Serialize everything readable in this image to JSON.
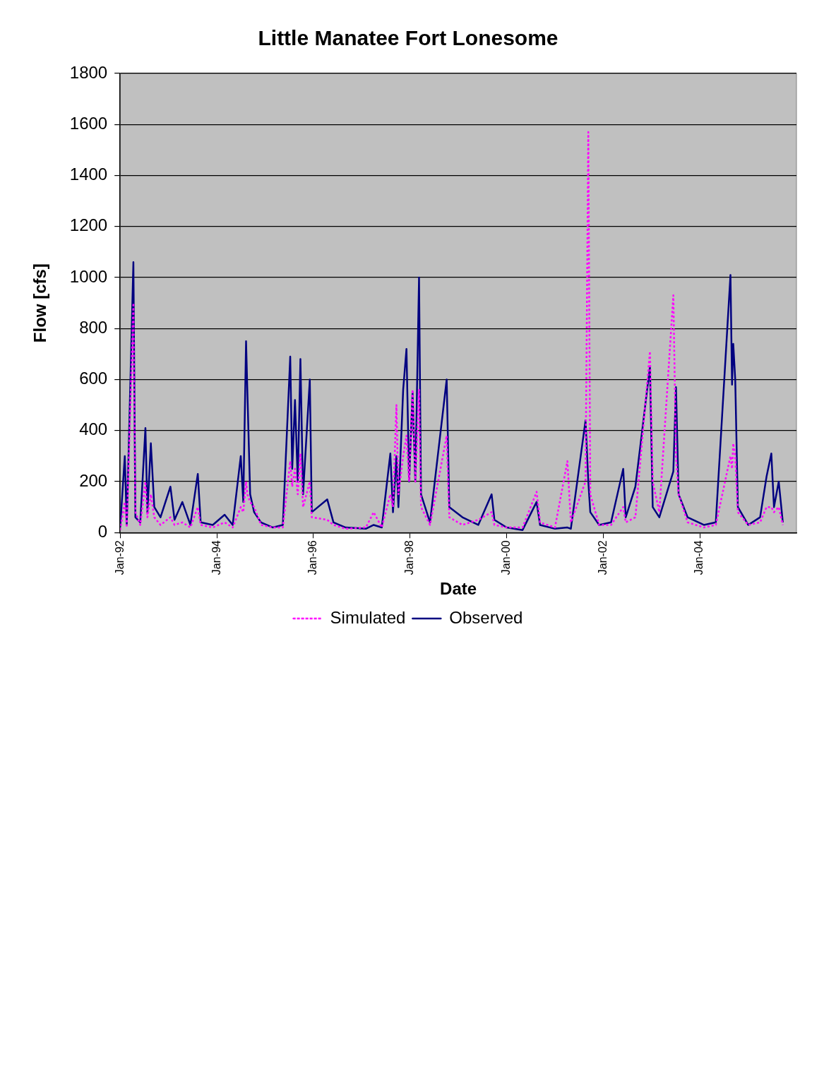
{
  "chart_data": {
    "type": "line",
    "title": "Little Manatee Fort Lonesome",
    "xlabel": "Date",
    "ylabel": "Flow [cfs]",
    "xlim": [
      "1992-01-01",
      "2006-01-01"
    ],
    "xticks": [
      {
        "value": "1992-01-01",
        "label": "Jan-92"
      },
      {
        "value": "1994-01-01",
        "label": "Jan-94"
      },
      {
        "value": "1996-01-01",
        "label": "Jan-96"
      },
      {
        "value": "1998-01-01",
        "label": "Jan-98"
      },
      {
        "value": "2000-01-01",
        "label": "Jan-00"
      },
      {
        "value": "2002-01-01",
        "label": "Jan-02"
      },
      {
        "value": "2004-01-01",
        "label": "Jan-04"
      }
    ],
    "ylim": [
      0,
      1800
    ],
    "yticks": [
      0,
      200,
      400,
      600,
      800,
      1000,
      1200,
      1400,
      1600,
      1800
    ],
    "grid": "y",
    "legend": "bottom",
    "marker": "none",
    "x": [
      "1992-01-01",
      "1992-02-05",
      "1992-02-20",
      "1992-04-10",
      "1992-04-25",
      "1992-06-01",
      "1992-07-10",
      "1992-07-25",
      "1992-08-20",
      "1992-09-15",
      "1992-11-01",
      "1993-01-15",
      "1993-02-15",
      "1993-04-15",
      "1993-06-15",
      "1993-08-10",
      "1993-09-01",
      "1993-12-01",
      "1994-03-01",
      "1994-05-01",
      "1994-07-01",
      "1994-07-20",
      "1994-08-10",
      "1994-08-20",
      "1994-09-10",
      "1994-10-10",
      "1994-12-01",
      "1995-03-01",
      "1995-05-15",
      "1995-07-10",
      "1995-07-25",
      "1995-08-15",
      "1995-09-05",
      "1995-09-25",
      "1995-10-15",
      "1995-12-05",
      "1995-12-20",
      "1996-04-15",
      "1996-06-01",
      "1996-09-01",
      "1997-02-01",
      "1997-04-01",
      "1997-06-01",
      "1997-08-05",
      "1997-08-25",
      "1997-09-20",
      "1997-10-05",
      "1997-11-10",
      "1997-12-05",
      "1997-12-25",
      "1998-01-20",
      "1998-02-10",
      "1998-03-10",
      "1998-03-25",
      "1998-06-01",
      "1998-10-05",
      "1998-10-25",
      "1999-02-01",
      "1999-06-01",
      "1999-09-10",
      "1999-10-01",
      "2000-01-01",
      "2000-05-01",
      "2000-08-15",
      "2000-09-10",
      "2001-01-01",
      "2001-04-05",
      "2001-05-01",
      "2001-08-20",
      "2001-09-10",
      "2001-09-25",
      "2001-12-01",
      "2002-03-01",
      "2002-06-01",
      "2002-06-20",
      "2002-09-01",
      "2002-12-20",
      "2003-01-10",
      "2003-03-01",
      "2003-06-15",
      "2003-07-05",
      "2003-07-25",
      "2003-10-01",
      "2004-02-01",
      "2004-05-01",
      "2004-08-20",
      "2004-09-01",
      "2004-09-10",
      "2004-09-25",
      "2004-10-15",
      "2005-01-01",
      "2005-04-01",
      "2005-05-20",
      "2005-06-25",
      "2005-07-15",
      "2005-08-20",
      "2005-09-20"
    ],
    "series": [
      {
        "name": "Observed",
        "color": "#000080",
        "line_style": "solid",
        "values": [
          20,
          300,
          30,
          1060,
          60,
          40,
          410,
          80,
          350,
          100,
          60,
          180,
          50,
          120,
          30,
          230,
          40,
          30,
          70,
          30,
          300,
          120,
          750,
          550,
          150,
          80,
          40,
          20,
          30,
          690,
          250,
          520,
          200,
          680,
          150,
          600,
          80,
          130,
          40,
          20,
          15,
          30,
          20,
          310,
          80,
          300,
          100,
          560,
          720,
          200,
          550,
          200,
          1000,
          150,
          40,
          600,
          100,
          60,
          30,
          150,
          50,
          20,
          10,
          120,
          30,
          15,
          20,
          15,
          440,
          200,
          80,
          30,
          40,
          250,
          60,
          180,
          650,
          100,
          60,
          240,
          570,
          150,
          60,
          30,
          40,
          1010,
          580,
          740,
          600,
          100,
          30,
          60,
          220,
          310,
          100,
          200,
          40
        ]
      },
      {
        "name": "Simulated",
        "color": "#ff00ff",
        "line_style": "dotted",
        "values": [
          10,
          120,
          20,
          900,
          80,
          30,
          200,
          60,
          150,
          60,
          30,
          60,
          30,
          40,
          20,
          100,
          30,
          20,
          40,
          20,
          100,
          80,
          200,
          150,
          120,
          100,
          30,
          20,
          20,
          280,
          180,
          250,
          150,
          310,
          100,
          200,
          60,
          50,
          30,
          15,
          20,
          80,
          20,
          150,
          100,
          500,
          150,
          300,
          380,
          200,
          560,
          200,
          560,
          100,
          30,
          380,
          60,
          30,
          50,
          80,
          30,
          20,
          20,
          160,
          40,
          20,
          280,
          40,
          200,
          1570,
          150,
          30,
          30,
          100,
          40,
          60,
          710,
          200,
          80,
          930,
          300,
          150,
          40,
          20,
          30,
          300,
          250,
          350,
          300,
          80,
          30,
          40,
          100,
          100,
          80,
          100,
          30
        ]
      }
    ]
  }
}
